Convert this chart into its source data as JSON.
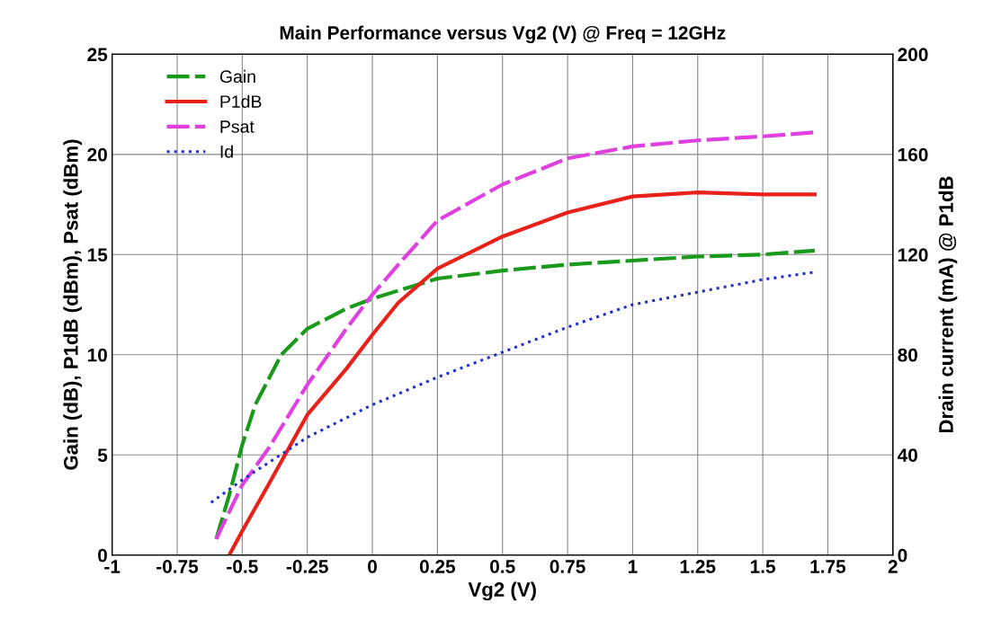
{
  "chart_data": {
    "type": "line",
    "title": "Main Performance versus Vg2 (V) @ Freq = 12GHz",
    "xlabel": "Vg2 (V)",
    "ylabel": "Gain (dB), P1dB (dBm), Psat (dBm)",
    "y2label": "Drain current (mA) @ P1dB",
    "xlim": [
      -1,
      2
    ],
    "xticks": [
      -1,
      -0.75,
      -0.5,
      -0.25,
      0,
      0.25,
      0.5,
      0.75,
      1,
      1.25,
      1.5,
      1.75,
      2
    ],
    "ylim": [
      0,
      25
    ],
    "yticks": [
      0,
      5,
      10,
      15,
      20,
      25
    ],
    "y2lim": [
      0,
      200
    ],
    "y2ticks": [
      0,
      40,
      80,
      120,
      160,
      200
    ],
    "grid": true,
    "legend": "top left",
    "marker": "none",
    "series": [
      {
        "name": "Gain",
        "color": "#1a9a1a",
        "line_style": "dashed",
        "x": [
          -0.6,
          -0.55,
          -0.5,
          -0.45,
          -0.35,
          -0.25,
          -0.1,
          0,
          0.25,
          0.5,
          0.75,
          1,
          1.25,
          1.5,
          1.7
        ],
        "values": [
          0.8,
          3,
          5.5,
          7.5,
          10,
          11.3,
          12.3,
          12.8,
          13.8,
          14.2,
          14.5,
          14.7,
          14.9,
          15,
          15.2
        ]
      },
      {
        "name": "P1dB",
        "color": "#e8211a",
        "line_style": "solid",
        "x": [
          -0.55,
          -0.5,
          -0.4,
          -0.25,
          -0.1,
          0,
          0.1,
          0.25,
          0.5,
          0.75,
          1,
          1.25,
          1.5,
          1.7
        ],
        "values": [
          0,
          1.2,
          3.5,
          7,
          9.3,
          11,
          12.6,
          14.3,
          15.9,
          17.1,
          17.9,
          18.1,
          18,
          18
        ]
      },
      {
        "name": "Psat",
        "color": "#e040e0",
        "line_style": "dashed",
        "x": [
          -0.6,
          -0.5,
          -0.4,
          -0.25,
          -0.1,
          0,
          0.1,
          0.25,
          0.5,
          0.75,
          1,
          1.25,
          1.5,
          1.7
        ],
        "values": [
          0.8,
          3.5,
          5.3,
          8.5,
          11.3,
          13,
          14.5,
          16.7,
          18.5,
          19.8,
          20.4,
          20.7,
          20.9,
          21.1
        ]
      },
      {
        "name": "Id",
        "color": "#2030d0",
        "line_style": "dotted",
        "axis": "y2",
        "x": [
          -0.62,
          -0.5,
          -0.25,
          0,
          0.25,
          0.5,
          0.75,
          1,
          1.25,
          1.5,
          1.7
        ],
        "values": [
          21,
          30,
          47,
          60,
          71,
          81,
          91,
          100,
          105,
          110,
          113
        ]
      }
    ]
  }
}
